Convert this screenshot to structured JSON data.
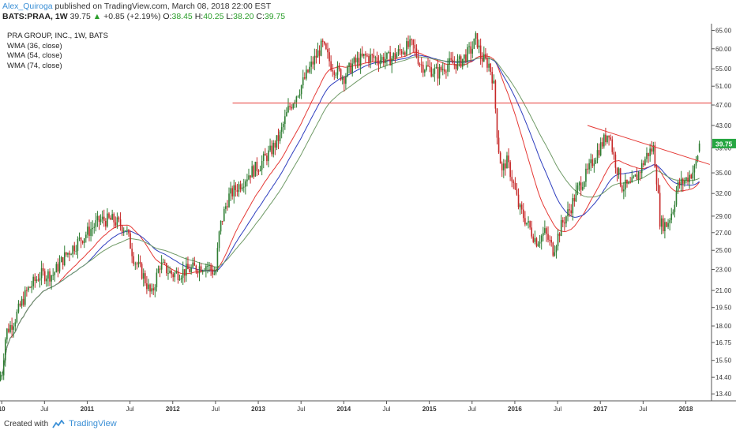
{
  "header": {
    "author": "Alex_Quiroga",
    "published": "published on TradingView.com, March 08, 2018 22:00 EST",
    "symbol": "BATS:PRAA, 1W",
    "last": "39.75",
    "arrow": "▲",
    "change": "+0.85 (+2.19%)",
    "open_label": "O:",
    "open": "38.45",
    "high_label": "H:",
    "high": "40.25",
    "low_label": "L:",
    "low": "38.20",
    "close_label": "C:",
    "close": "39.75"
  },
  "legend": {
    "title": "PRA GROUP, INC., 1W, BATS",
    "items": [
      "WMA (36, close)",
      "WMA (54, close)",
      "WMA (74, close)"
    ]
  },
  "footer": {
    "created": "Created with",
    "brand": "TradingView"
  },
  "colors": {
    "up": "#2e7d32",
    "down": "#c62828",
    "wma36": "#e53935",
    "wma54": "#2f3fbf",
    "wma74": "#6f9a66",
    "hline": "#e53935",
    "trend": "#e53935",
    "price_tag": "#26a641"
  },
  "chart_data": {
    "type": "candlestick",
    "title": "PRA GROUP, INC., 1W, BATS",
    "scale": "log",
    "ylim": [
      13.0,
      66.0
    ],
    "y_ticks": [
      "65.00",
      "60.00",
      "55.00",
      "51.00",
      "47.00",
      "43.00",
      "39.00",
      "35.00",
      "32.00",
      "29.00",
      "27.00",
      "25.00",
      "23.00",
      "21.00",
      "19.50",
      "18.00",
      "16.75",
      "15.50",
      "14.40",
      "13.40"
    ],
    "x_labels": [
      {
        "label": "10",
        "t": 2010.0
      },
      {
        "label": "Jul",
        "t": 2010.5
      },
      {
        "label": "2011",
        "t": 2011.0
      },
      {
        "label": "Jul",
        "t": 2011.5
      },
      {
        "label": "2012",
        "t": 2012.0
      },
      {
        "label": "Jul",
        "t": 2012.5
      },
      {
        "label": "2013",
        "t": 2013.0
      },
      {
        "label": "Jul",
        "t": 2013.5
      },
      {
        "label": "2014",
        "t": 2014.0
      },
      {
        "label": "Jul",
        "t": 2014.5
      },
      {
        "label": "2015",
        "t": 2015.0
      },
      {
        "label": "Jul",
        "t": 2015.5
      },
      {
        "label": "2016",
        "t": 2016.0
      },
      {
        "label": "Jul",
        "t": 2016.5
      },
      {
        "label": "2017",
        "t": 2017.0
      },
      {
        "label": "Jul",
        "t": 2017.5
      },
      {
        "label": "2018",
        "t": 2018.0
      }
    ],
    "x_range": [
      2009.98,
      2018.3
    ],
    "price_anchors": [
      [
        2010.0,
        14.5
      ],
      [
        2010.05,
        17.5
      ],
      [
        2010.15,
        18.5
      ],
      [
        2010.3,
        21.0
      ],
      [
        2010.45,
        22.5
      ],
      [
        2010.6,
        22.5
      ],
      [
        2010.75,
        24.5
      ],
      [
        2010.9,
        26.0
      ],
      [
        2011.0,
        27.0
      ],
      [
        2011.15,
        28.5
      ],
      [
        2011.3,
        28.5
      ],
      [
        2011.45,
        27.5
      ],
      [
        2011.55,
        24.0
      ],
      [
        2011.65,
        22.5
      ],
      [
        2011.75,
        20.5
      ],
      [
        2011.85,
        23.5
      ],
      [
        2012.0,
        22.5
      ],
      [
        2012.2,
        23.0
      ],
      [
        2012.4,
        23.5
      ],
      [
        2012.5,
        22.5
      ],
      [
        2012.55,
        27.5
      ],
      [
        2012.65,
        31.5
      ],
      [
        2012.8,
        33.5
      ],
      [
        2012.9,
        35.0
      ],
      [
        2013.0,
        36.0
      ],
      [
        2013.15,
        38.5
      ],
      [
        2013.25,
        41.0
      ],
      [
        2013.35,
        46.0
      ],
      [
        2013.5,
        51.0
      ],
      [
        2013.65,
        57.0
      ],
      [
        2013.75,
        61.0
      ],
      [
        2013.85,
        56.0
      ],
      [
        2014.0,
        53.0
      ],
      [
        2014.1,
        56.0
      ],
      [
        2014.25,
        58.0
      ],
      [
        2014.4,
        57.5
      ],
      [
        2014.55,
        57.5
      ],
      [
        2014.7,
        60.0
      ],
      [
        2014.8,
        61.0
      ],
      [
        2014.9,
        56.0
      ],
      [
        2015.0,
        55.0
      ],
      [
        2015.1,
        54.0
      ],
      [
        2015.2,
        56.0
      ],
      [
        2015.35,
        56.5
      ],
      [
        2015.5,
        60.0
      ],
      [
        2015.55,
        63.0
      ],
      [
        2015.6,
        58.0
      ],
      [
        2015.7,
        56.0
      ],
      [
        2015.75,
        52.0
      ],
      [
        2015.8,
        40.0
      ],
      [
        2015.85,
        35.0
      ],
      [
        2015.9,
        37.0
      ],
      [
        2015.95,
        35.0
      ],
      [
        2016.05,
        30.0
      ],
      [
        2016.15,
        28.0
      ],
      [
        2016.25,
        26.0
      ],
      [
        2016.35,
        27.0
      ],
      [
        2016.45,
        25.0
      ],
      [
        2016.55,
        28.0
      ],
      [
        2016.65,
        30.0
      ],
      [
        2016.75,
        33.0
      ],
      [
        2016.85,
        35.0
      ],
      [
        2016.95,
        38.0
      ],
      [
        2017.05,
        40.5
      ],
      [
        2017.1,
        42.0
      ],
      [
        2017.15,
        38.0
      ],
      [
        2017.25,
        33.0
      ],
      [
        2017.35,
        33.0
      ],
      [
        2017.45,
        35.0
      ],
      [
        2017.55,
        38.0
      ],
      [
        2017.62,
        39.0
      ],
      [
        2017.66,
        34.0
      ],
      [
        2017.7,
        28.0
      ],
      [
        2017.78,
        28.0
      ],
      [
        2017.85,
        30.0
      ],
      [
        2017.9,
        33.0
      ],
      [
        2018.0,
        34.0
      ],
      [
        2018.1,
        35.5
      ],
      [
        2018.17,
        39.75
      ]
    ],
    "series": [
      {
        "name": "WMA (36, close)",
        "period": 36
      },
      {
        "name": "WMA (54, close)",
        "period": 54
      },
      {
        "name": "WMA (74, close)",
        "period": 74
      }
    ],
    "annotations": {
      "horizontal_line": {
        "y": 47.4,
        "x_start": 2012.7
      },
      "trendline": {
        "from": [
          2016.85,
          43.0
        ],
        "to": [
          2018.28,
          36.3
        ]
      }
    },
    "last_price": 39.75
  }
}
